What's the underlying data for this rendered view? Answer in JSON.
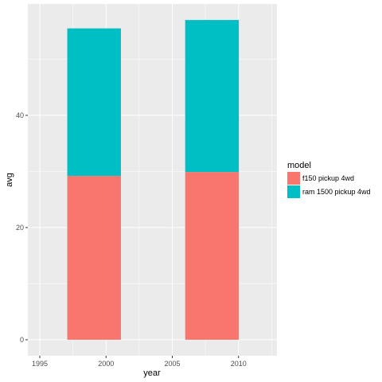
{
  "chart_data": {
    "type": "bar",
    "stacked": true,
    "title": "",
    "xlabel": "year",
    "ylabel": "avg",
    "xlim": [
      1994.1,
      2012.9
    ],
    "ylim": [
      -2.85,
      59.85
    ],
    "x_ticks": [
      1995,
      2000,
      2005,
      2010
    ],
    "y_ticks": [
      0,
      20,
      40
    ],
    "bar_width_years": 4.05,
    "grid": true,
    "legend_position": "right",
    "legend_title": "model",
    "series": [
      {
        "name": "f150 pickup 4wd",
        "color": "#F8766D",
        "points": [
          {
            "x": 1999.1,
            "ymin": 0,
            "ymax": 29.2
          },
          {
            "x": 2008.0,
            "ymin": 0,
            "ymax": 29.9
          }
        ]
      },
      {
        "name": "ram 1500 pickup 4wd",
        "color": "#00BFC4",
        "points": [
          {
            "x": 1999.1,
            "ymin": 29.2,
            "ymax": 55.5
          },
          {
            "x": 2008.0,
            "ymin": 29.9,
            "ymax": 57.0
          }
        ]
      }
    ]
  }
}
